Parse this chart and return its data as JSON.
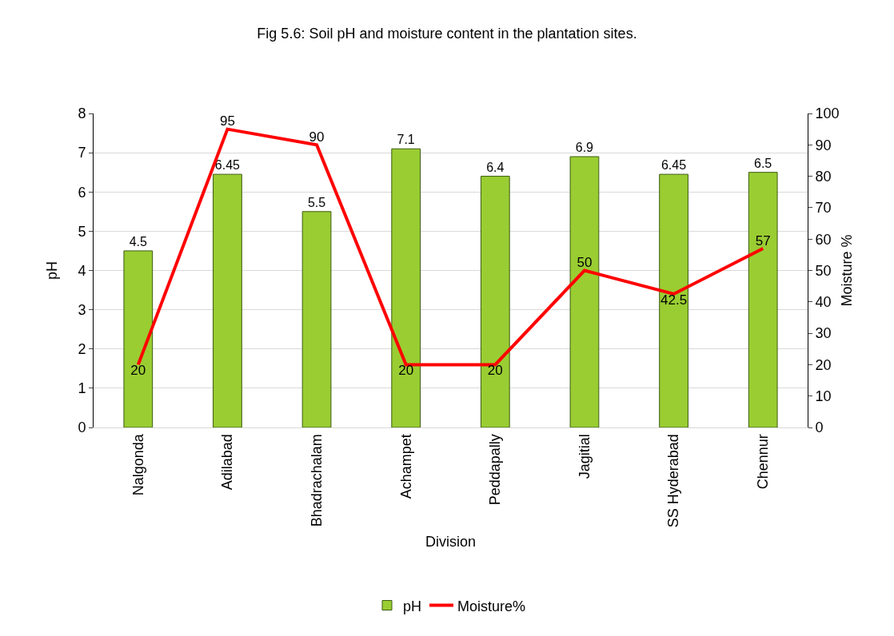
{
  "chart_data": {
    "type": "bar",
    "title": "Fig 5.6: Soil pH and moisture content in the plantation sites.",
    "xlabel": "Division",
    "ylabel": "pH",
    "y2label": "Moisture %",
    "categories": [
      "Nalgonda",
      "Adilabad",
      "Bhadrachalam",
      "Achampet",
      "Peddapally",
      "Jagitial",
      "SS Hyderabad",
      "Chennur"
    ],
    "series": [
      {
        "name": "pH",
        "color": "#9acd32",
        "values": [
          4.5,
          6.45,
          5.5,
          7.1,
          6.4,
          6.9,
          6.45,
          6.5
        ]
      },
      {
        "name": "Moisture%",
        "type": "line",
        "axis": "y2",
        "color": "#ff0000",
        "marker": "none",
        "line_style": "solid",
        "values": [
          20,
          95,
          90,
          20,
          20,
          50,
          42.5,
          57
        ]
      }
    ],
    "ylim": [
      0,
      8
    ],
    "yticks": [
      0,
      1,
      2,
      3,
      4,
      5,
      6,
      7,
      8
    ],
    "y2lim": [
      0,
      100
    ],
    "y2ticks": [
      0,
      10,
      20,
      30,
      40,
      50,
      60,
      70,
      80,
      90,
      100
    ],
    "grid": "y",
    "legend": "bottom",
    "data_labels": true
  }
}
